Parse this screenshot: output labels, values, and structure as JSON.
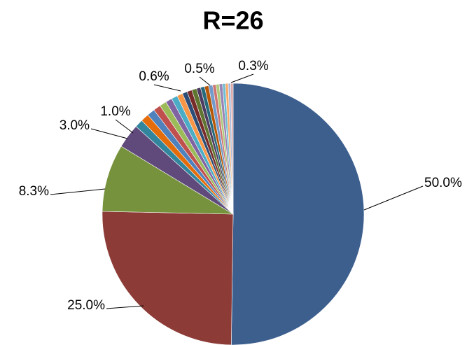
{
  "chart_data": {
    "type": "pie",
    "title": "R=26",
    "values": [
      50.0,
      25.0,
      8.3,
      3.0,
      1.0,
      1.0,
      0.95,
      0.9,
      0.85,
      0.8,
      0.75,
      0.7,
      0.6,
      0.6,
      0.6,
      0.5,
      0.5,
      0.5,
      0.5,
      0.4,
      0.4,
      0.4,
      0.35,
      0.35,
      0.3,
      0.3
    ],
    "value_labels": [
      "50.0%",
      "25.0%",
      "8.3%",
      "3.0%",
      "1.0%",
      null,
      null,
      null,
      null,
      null,
      null,
      null,
      "0.6%",
      null,
      null,
      "0.5%",
      null,
      null,
      null,
      null,
      null,
      null,
      null,
      null,
      null,
      "0.3%"
    ],
    "colors": [
      "#3d5f8e",
      "#8d3b37",
      "#76923c",
      "#5f4a7b",
      "#31859c",
      "#e46c0a",
      "#4f81bd",
      "#c0504d",
      "#9bbb59",
      "#8064a2",
      "#4bacc6",
      "#f79646",
      "#2c4d75",
      "#772c2a",
      "#5f7530",
      "#4d3b62",
      "#276a7c",
      "#b65708",
      "#729aca",
      "#cd7371",
      "#afc97a",
      "#9983b5",
      "#6fbdd1",
      "#f9ab6b",
      "#a6b9dc",
      "#dca9a8"
    ]
  }
}
